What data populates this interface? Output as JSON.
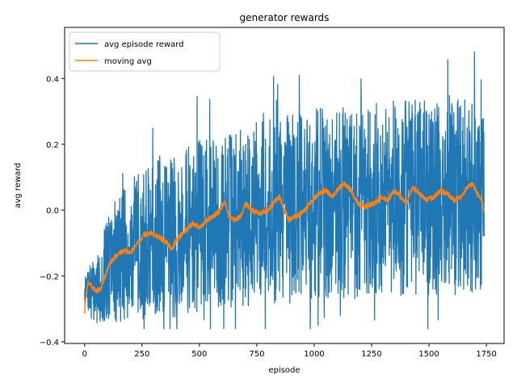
{
  "chart_data": {
    "type": "line",
    "title": "generator rewards",
    "xlabel": "episode",
    "ylabel": "avg reward",
    "xlim": [
      -87,
      1827
    ],
    "ylim": [
      -0.405,
      0.555
    ],
    "xticks": [
      0,
      250,
      500,
      750,
      1000,
      1250,
      1500,
      1750
    ],
    "yticks": [
      -0.4,
      -0.2,
      0.0,
      0.2,
      0.4
    ],
    "xtick_labels": [
      "0",
      "250",
      "500",
      "750",
      "1000",
      "1250",
      "1500",
      "1750"
    ],
    "ytick_labels": [
      "−0.4",
      "−0.2",
      "0.0",
      "0.2",
      "0.4"
    ],
    "grid": false,
    "legend_position": "upper-left",
    "num_points": 1741,
    "series": [
      {
        "name": "avg episode reward",
        "color": "#1f77b4",
        "style": "noisy",
        "noise_seed": 7,
        "mean_trend": [
          [
            0,
            -0.25
          ],
          [
            60,
            -0.24
          ],
          [
            100,
            -0.17
          ],
          [
            200,
            -0.12
          ],
          [
            350,
            -0.08
          ],
          [
            500,
            -0.05
          ],
          [
            750,
            -0.01
          ],
          [
            1000,
            0.02
          ],
          [
            1250,
            0.03
          ],
          [
            1500,
            0.04
          ],
          [
            1740,
            0.04
          ]
        ],
        "amplitude_trend": [
          [
            0,
            0.05
          ],
          [
            60,
            0.15
          ],
          [
            150,
            0.24
          ],
          [
            400,
            0.3
          ],
          [
            800,
            0.33
          ],
          [
            1200,
            0.35
          ],
          [
            1740,
            0.35
          ]
        ],
        "value_range": [
          -0.36,
          0.49
        ]
      },
      {
        "name": "moving avg",
        "color": "#ff7f0e",
        "style": "smooth",
        "noise_seed": 3,
        "jitter": 0.008,
        "keypoints": [
          [
            0,
            -0.31
          ],
          [
            5,
            -0.27
          ],
          [
            15,
            -0.22
          ],
          [
            30,
            -0.23
          ],
          [
            50,
            -0.245
          ],
          [
            70,
            -0.24
          ],
          [
            90,
            -0.2
          ],
          [
            110,
            -0.16
          ],
          [
            130,
            -0.145
          ],
          [
            150,
            -0.13
          ],
          [
            175,
            -0.125
          ],
          [
            200,
            -0.13
          ],
          [
            230,
            -0.1
          ],
          [
            260,
            -0.075
          ],
          [
            290,
            -0.07
          ],
          [
            320,
            -0.08
          ],
          [
            360,
            -0.1
          ],
          [
            380,
            -0.12
          ],
          [
            400,
            -0.09
          ],
          [
            430,
            -0.07
          ],
          [
            470,
            -0.04
          ],
          [
            500,
            -0.055
          ],
          [
            530,
            -0.03
          ],
          [
            560,
            -0.02
          ],
          [
            590,
            0.0
          ],
          [
            610,
            0.03
          ],
          [
            630,
            -0.02
          ],
          [
            650,
            -0.03
          ],
          [
            680,
            -0.02
          ],
          [
            700,
            0.02
          ],
          [
            730,
            0.0
          ],
          [
            760,
            -0.01
          ],
          [
            800,
            0.0
          ],
          [
            830,
            0.03
          ],
          [
            850,
            0.04
          ],
          [
            870,
            0.0
          ],
          [
            890,
            -0.03
          ],
          [
            920,
            -0.02
          ],
          [
            960,
            0.0
          ],
          [
            990,
            0.03
          ],
          [
            1020,
            0.05
          ],
          [
            1050,
            0.06
          ],
          [
            1080,
            0.04
          ],
          [
            1110,
            0.07
          ],
          [
            1130,
            0.08
          ],
          [
            1160,
            0.06
          ],
          [
            1190,
            0.02
          ],
          [
            1220,
            0.01
          ],
          [
            1260,
            0.02
          ],
          [
            1290,
            0.04
          ],
          [
            1320,
            0.03
          ],
          [
            1350,
            0.06
          ],
          [
            1380,
            0.04
          ],
          [
            1400,
            0.02
          ],
          [
            1430,
            0.07
          ],
          [
            1460,
            0.05
          ],
          [
            1490,
            0.03
          ],
          [
            1520,
            0.04
          ],
          [
            1550,
            0.06
          ],
          [
            1580,
            0.05
          ],
          [
            1610,
            0.03
          ],
          [
            1640,
            0.04
          ],
          [
            1670,
            0.07
          ],
          [
            1690,
            0.08
          ],
          [
            1710,
            0.05
          ],
          [
            1730,
            0.03
          ],
          [
            1740,
            0.0
          ]
        ]
      }
    ]
  }
}
